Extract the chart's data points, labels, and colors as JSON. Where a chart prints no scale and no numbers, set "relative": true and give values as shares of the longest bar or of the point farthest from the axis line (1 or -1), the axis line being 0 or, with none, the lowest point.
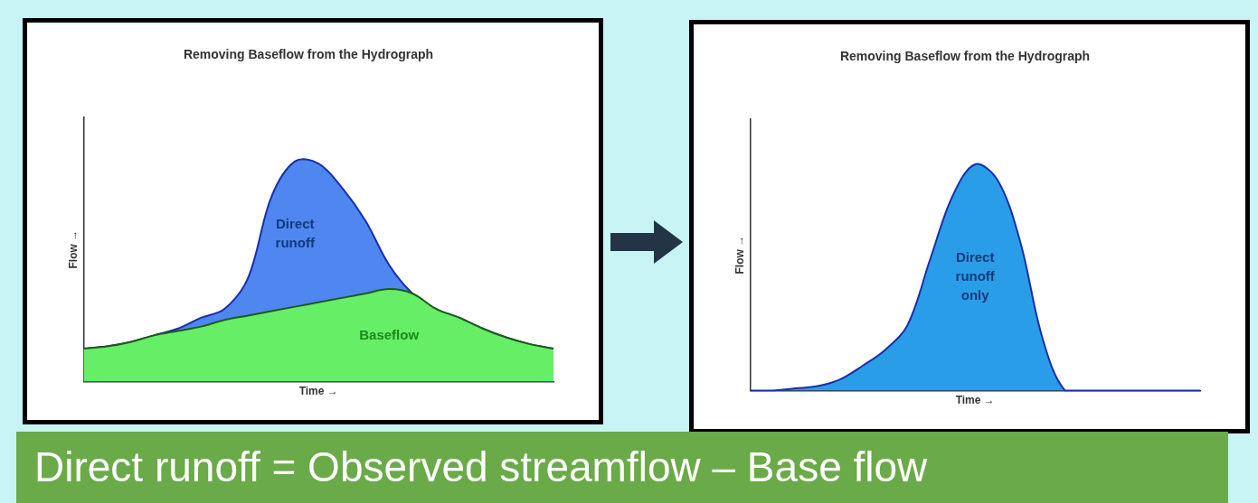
{
  "chart_data": [
    {
      "type": "area",
      "title": "Removing Baseflow from the Hydrograph",
      "xlabel": "Time →",
      "ylabel": "Flow →",
      "relative": true,
      "stacked": true,
      "categories": [
        null,
        null,
        null,
        null,
        null,
        null,
        null,
        null,
        null,
        null,
        null,
        null,
        null,
        null,
        null,
        null,
        null,
        null,
        null,
        null,
        null
      ],
      "series": [
        {
          "name": "Baseflow",
          "color": "#66ee66",
          "values": [
            0.15,
            0.16,
            0.18,
            0.21,
            0.23,
            0.25,
            0.28,
            0.3,
            0.32,
            0.34,
            0.36,
            0.38,
            0.4,
            0.42,
            0.4,
            0.33,
            0.29,
            0.24,
            0.2,
            0.17,
            0.15
          ]
        },
        {
          "name": "Direct runoff",
          "color": "#4f86f0",
          "values": [
            0,
            0,
            0,
            0,
            0.01,
            0.04,
            0.05,
            0.17,
            0.52,
            0.66,
            0.63,
            0.5,
            0.33,
            0.11,
            0,
            0,
            0,
            0,
            0,
            0,
            0
          ]
        }
      ]
    },
    {
      "type": "area",
      "title": "Removing Baseflow from the Hydrograph",
      "xlabel": "Time →",
      "ylabel": "Flow →",
      "relative": true,
      "categories": [
        null,
        null,
        null,
        null,
        null,
        null,
        null,
        null,
        null,
        null,
        null,
        null,
        null,
        null,
        null,
        null,
        null,
        null,
        null,
        null,
        null
      ],
      "series": [
        {
          "name": "Direct runoff only",
          "color": "#2a9de8",
          "values": [
            0,
            0,
            0.01,
            0.02,
            0.05,
            0.11,
            0.18,
            0.29,
            0.58,
            0.86,
            1.0,
            0.93,
            0.66,
            0.23,
            0,
            0,
            0,
            0,
            0,
            0,
            0
          ]
        }
      ]
    },
    {
      "type": "other",
      "title": "Direct runoff = Observed streamflow – Base flow"
    }
  ]
}
